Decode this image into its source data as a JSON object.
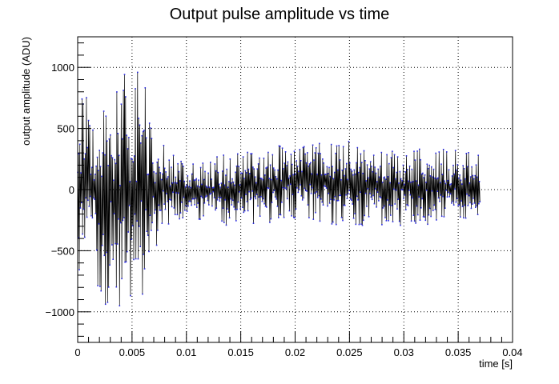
{
  "chart_data": {
    "type": "line",
    "title": "Output pulse amplitude vs time",
    "xlabel": "time [s]",
    "ylabel": "output amplitude (ADU)",
    "xlim": [
      0,
      0.04
    ],
    "ylim": [
      -1250,
      1250
    ],
    "x_ticks": [
      0,
      0.005,
      0.01,
      0.015,
      0.02,
      0.025,
      0.03,
      0.035,
      0.04
    ],
    "x_tick_labels": [
      "0",
      "0.005",
      "0.01",
      "0.015",
      "0.02",
      "0.025",
      "0.03",
      "0.035",
      "0.04"
    ],
    "y_ticks": [
      -1000,
      -500,
      0,
      500,
      1000
    ],
    "y_tick_labels": [
      "−1000",
      "−500",
      "0",
      "500",
      "1000"
    ],
    "grid": true,
    "grid_style": "dotted",
    "line_color": "#000000",
    "marker_color": "#2a2ae0",
    "series": [
      {
        "name": "",
        "x_start": 0,
        "x_end": 0.037,
        "n_points": 740,
        "envelope_x": [
          0,
          0.001,
          0.002,
          0.003,
          0.004,
          0.005,
          0.006,
          0.007,
          0.008,
          0.009,
          0.01,
          0.015,
          0.02,
          0.025,
          0.03,
          0.035,
          0.037
        ],
        "envelope_max": [
          650,
          1000,
          650,
          900,
          950,
          1030,
          950,
          500,
          350,
          280,
          230,
          330,
          380,
          400,
          330,
          350,
          350
        ],
        "envelope_min": [
          -650,
          -850,
          -900,
          -1000,
          -980,
          -1030,
          -950,
          -500,
          -330,
          -280,
          -230,
          -330,
          -250,
          -300,
          -300,
          -300,
          -300
        ]
      }
    ]
  }
}
